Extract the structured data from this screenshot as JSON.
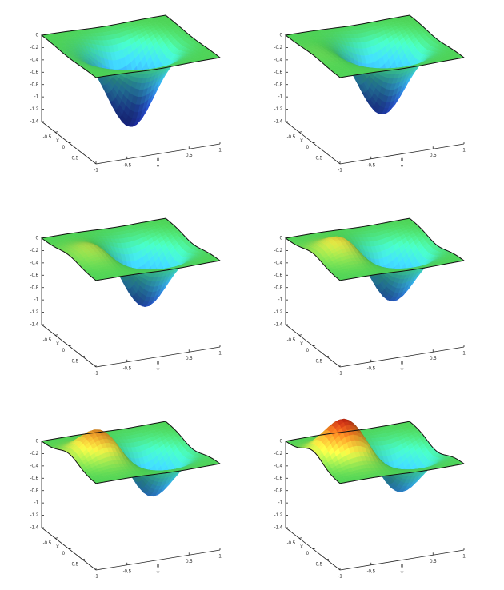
{
  "chart_data": [
    {
      "type": "surface",
      "xlabel": "X",
      "ylabel": "Y",
      "xlim": [
        -1,
        1
      ],
      "ylim": [
        -1,
        1
      ],
      "zlim": [
        -1.4,
        0
      ],
      "xticks": [
        -0.5,
        0,
        0.5
      ],
      "yticks": [
        -1,
        -0.5,
        0,
        0.5,
        1
      ],
      "zticks": [
        0,
        -0.2,
        -0.4,
        -0.6,
        -0.8,
        -1,
        -1.2,
        -1.4
      ],
      "well_center": [
        0,
        0
      ],
      "well_min": -1.3,
      "peak_center": [
        0,
        -0.45
      ],
      "peak_height": 0,
      "width": 0.35,
      "colormap": [
        {
          "value": -1.4,
          "color": "#1c1c9c"
        },
        {
          "value": -0.9,
          "color": "#2a5ad8"
        },
        {
          "value": -0.5,
          "color": "#38b8f0"
        },
        {
          "value": -0.2,
          "color": "#40e0b0"
        },
        {
          "value": 0,
          "color": "#52de5a"
        },
        {
          "value": 0.25,
          "color": "#e0e040"
        },
        {
          "value": 0.45,
          "color": "#e08020"
        },
        {
          "value": 0.65,
          "color": "#c01010"
        }
      ]
    },
    {
      "type": "surface",
      "xlabel": "X",
      "ylabel": "Y",
      "xlim": [
        -1,
        1
      ],
      "ylim": [
        -1,
        1
      ],
      "zlim": [
        -1.4,
        0
      ],
      "xticks": [
        -0.5,
        0,
        0.5
      ],
      "yticks": [
        -1,
        -0.5,
        0,
        0.5,
        1
      ],
      "zticks": [
        0,
        -0.2,
        -0.4,
        -0.6,
        -0.8,
        -1,
        -1.2,
        -1.4
      ],
      "well_center": [
        0,
        0.1
      ],
      "well_min": -1.15,
      "peak_center": [
        0,
        -0.45
      ],
      "peak_height": 0.12,
      "width": 0.35,
      "colormap": [
        {
          "value": -1.4,
          "color": "#1c1c9c"
        },
        {
          "value": -0.9,
          "color": "#2a5ad8"
        },
        {
          "value": -0.5,
          "color": "#38b8f0"
        },
        {
          "value": -0.2,
          "color": "#40e0b0"
        },
        {
          "value": 0,
          "color": "#52de5a"
        },
        {
          "value": 0.25,
          "color": "#e0e040"
        },
        {
          "value": 0.45,
          "color": "#e08020"
        },
        {
          "value": 0.65,
          "color": "#c01010"
        }
      ]
    },
    {
      "type": "surface",
      "xlabel": "X",
      "ylabel": "Y",
      "xlim": [
        -1,
        1
      ],
      "ylim": [
        -1,
        1
      ],
      "zlim": [
        -1.4,
        0
      ],
      "xticks": [
        -0.5,
        0,
        0.5
      ],
      "yticks": [
        -1,
        -0.5,
        0,
        0.5,
        1
      ],
      "zticks": [
        0,
        -0.2,
        -0.4,
        -0.6,
        -0.8,
        -1,
        -1.2,
        -1.4
      ],
      "well_center": [
        0,
        0.2
      ],
      "well_min": -1.0,
      "peak_center": [
        0,
        -0.45
      ],
      "peak_height": 0.25,
      "width": 0.35,
      "colormap": [
        {
          "value": -1.4,
          "color": "#1c1c9c"
        },
        {
          "value": -0.9,
          "color": "#2a5ad8"
        },
        {
          "value": -0.5,
          "color": "#38b8f0"
        },
        {
          "value": -0.2,
          "color": "#40e0b0"
        },
        {
          "value": 0,
          "color": "#52de5a"
        },
        {
          "value": 0.25,
          "color": "#e0e040"
        },
        {
          "value": 0.45,
          "color": "#e08020"
        },
        {
          "value": 0.65,
          "color": "#c01010"
        }
      ]
    },
    {
      "type": "surface",
      "xlabel": "X",
      "ylabel": "Y",
      "xlim": [
        -1,
        1
      ],
      "ylim": [
        -1,
        1
      ],
      "zlim": [
        -1.4,
        0
      ],
      "xticks": [
        -0.5,
        0,
        0.5
      ],
      "yticks": [
        -1,
        -0.5,
        0,
        0.5,
        1
      ],
      "zticks": [
        0,
        -0.2,
        -0.4,
        -0.6,
        -0.8,
        -1,
        -1.2,
        -1.4
      ],
      "well_center": [
        0,
        0.25
      ],
      "well_min": -0.92,
      "peak_center": [
        0,
        -0.45
      ],
      "peak_height": 0.35,
      "width": 0.35,
      "colormap": [
        {
          "value": -1.4,
          "color": "#1c1c9c"
        },
        {
          "value": -0.9,
          "color": "#2a5ad8"
        },
        {
          "value": -0.5,
          "color": "#38b8f0"
        },
        {
          "value": -0.2,
          "color": "#40e0b0"
        },
        {
          "value": 0,
          "color": "#52de5a"
        },
        {
          "value": 0.25,
          "color": "#e0e040"
        },
        {
          "value": 0.45,
          "color": "#e08020"
        },
        {
          "value": 0.65,
          "color": "#c01010"
        }
      ]
    },
    {
      "type": "surface",
      "xlabel": "X",
      "ylabel": "Y",
      "xlim": [
        -1,
        1
      ],
      "ylim": [
        -1,
        1
      ],
      "zlim": [
        -1.4,
        0
      ],
      "xticks": [
        -0.5,
        0,
        0.5
      ],
      "yticks": [
        -1,
        -0.5,
        0,
        0.5,
        1
      ],
      "zticks": [
        0,
        -0.2,
        -0.4,
        -0.6,
        -0.8,
        -1,
        -1.2,
        -1.4
      ],
      "well_center": [
        0,
        0.3
      ],
      "well_min": -0.8,
      "peak_center": [
        0,
        -0.45
      ],
      "peak_height": 0.5,
      "width": 0.35,
      "colormap": [
        {
          "value": -1.4,
          "color": "#1c1c9c"
        },
        {
          "value": -0.9,
          "color": "#2a5ad8"
        },
        {
          "value": -0.5,
          "color": "#38b8f0"
        },
        {
          "value": -0.2,
          "color": "#40e0b0"
        },
        {
          "value": 0,
          "color": "#52de5a"
        },
        {
          "value": 0.25,
          "color": "#e0e040"
        },
        {
          "value": 0.45,
          "color": "#e08020"
        },
        {
          "value": 0.65,
          "color": "#c01010"
        }
      ]
    },
    {
      "type": "surface",
      "xlabel": "X",
      "ylabel": "Y",
      "xlim": [
        -1,
        1
      ],
      "ylim": [
        -1,
        1
      ],
      "zlim": [
        -1.4,
        0
      ],
      "xticks": [
        -0.5,
        0,
        0.5
      ],
      "yticks": [
        -1,
        -0.5,
        0,
        0.5,
        1
      ],
      "zticks": [
        0,
        -0.2,
        -0.4,
        -0.6,
        -0.8,
        -1,
        -1.2,
        -1.4
      ],
      "well_center": [
        0,
        0.37
      ],
      "well_min": -0.73,
      "peak_center": [
        0,
        -0.45
      ],
      "peak_height": 0.65,
      "width": 0.35,
      "colormap": [
        {
          "value": -1.4,
          "color": "#1c1c9c"
        },
        {
          "value": -0.9,
          "color": "#2a5ad8"
        },
        {
          "value": -0.5,
          "color": "#38b8f0"
        },
        {
          "value": -0.2,
          "color": "#40e0b0"
        },
        {
          "value": 0,
          "color": "#52de5a"
        },
        {
          "value": 0.25,
          "color": "#e0e040"
        },
        {
          "value": 0.45,
          "color": "#e08020"
        },
        {
          "value": 0.65,
          "color": "#c01010"
        }
      ]
    }
  ]
}
